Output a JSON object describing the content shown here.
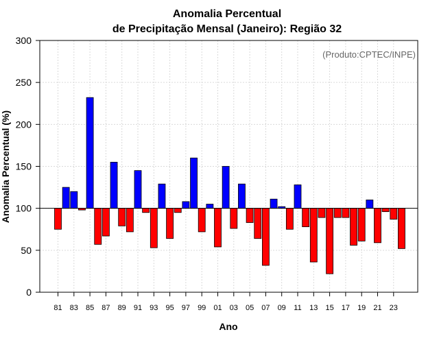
{
  "chart_data": {
    "type": "bar",
    "title_line1": "Anomalia Percentual",
    "title_line2": "de Precipitação Mensal (Janeiro): Região 32",
    "credit": "(Produto:CPTEC/INPE)",
    "xlabel": "Ano",
    "ylabel": "Anomalia Percentual (%)",
    "ylim": [
      0,
      300
    ],
    "yticks": [
      0,
      50,
      100,
      150,
      200,
      250,
      300
    ],
    "baseline": 100,
    "grid": true,
    "categories": [
      "81",
      "82",
      "83",
      "84",
      "85",
      "86",
      "87",
      "88",
      "89",
      "90",
      "91",
      "92",
      "93",
      "94",
      "95",
      "96",
      "97",
      "98",
      "99",
      "00",
      "01",
      "02",
      "03",
      "04",
      "05",
      "06",
      "07",
      "08",
      "09",
      "10",
      "11",
      "12",
      "13",
      "14",
      "15",
      "16",
      "17",
      "18",
      "19",
      "20",
      "21",
      "22",
      "23",
      "24"
    ],
    "xtick_labels": [
      "81",
      "83",
      "85",
      "87",
      "89",
      "91",
      "93",
      "95",
      "97",
      "99",
      "01",
      "03",
      "05",
      "07",
      "09",
      "11",
      "13",
      "15",
      "17",
      "19",
      "21",
      "23"
    ],
    "values": [
      75,
      125,
      120,
      98,
      232,
      57,
      67,
      155,
      79,
      72,
      145,
      95,
      53,
      129,
      64,
      95,
      108,
      160,
      72,
      105,
      54,
      150,
      76,
      129,
      83,
      64,
      32,
      111,
      102,
      75,
      128,
      78,
      36,
      89,
      22,
      89,
      89,
      56,
      61,
      110,
      59,
      96,
      87,
      52
    ],
    "colors": {
      "above": "#0000ff",
      "below": "#ff0000",
      "edge": "#000000"
    }
  }
}
